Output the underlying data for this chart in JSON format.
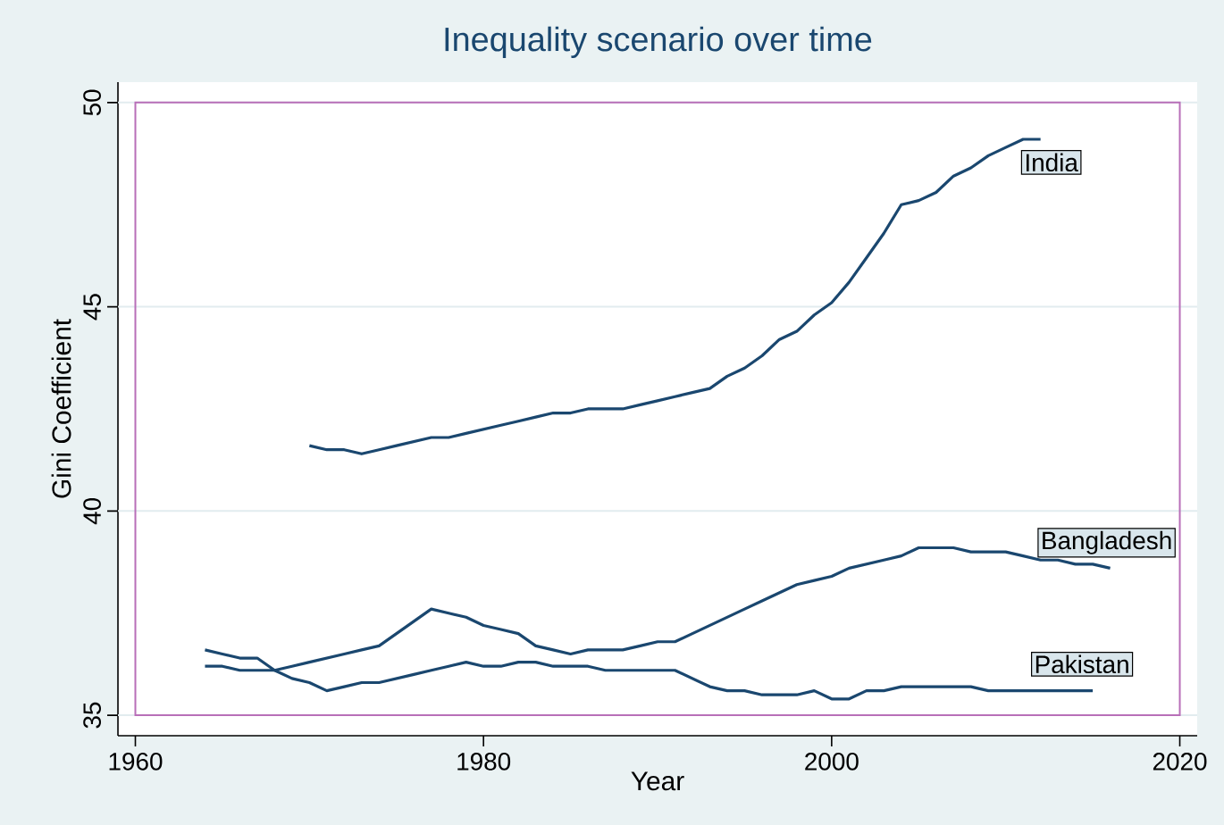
{
  "chart_data": {
    "type": "line",
    "title": "Inequality scenario over time",
    "xlabel": "Year",
    "ylabel": "Gini Coefficient",
    "xlim": [
      1959,
      2021
    ],
    "ylim": [
      34.5,
      50.5
    ],
    "xticks": [
      1960,
      1980,
      2000,
      2020
    ],
    "yticks": [
      35,
      40,
      45,
      50
    ],
    "grid": "y",
    "legend": false,
    "line_style": "solid",
    "marker": "none",
    "series": [
      {
        "name": "India",
        "color": "#1a476f",
        "x": [
          1970,
          1971,
          1972,
          1973,
          1974,
          1975,
          1976,
          1977,
          1978,
          1979,
          1980,
          1981,
          1982,
          1983,
          1984,
          1985,
          1986,
          1987,
          1988,
          1989,
          1990,
          1991,
          1992,
          1993,
          1994,
          1995,
          1996,
          1997,
          1998,
          1999,
          2000,
          2001,
          2002,
          2003,
          2004,
          2005,
          2006,
          2007,
          2008,
          2009,
          2010,
          2011,
          2012
        ],
        "values": [
          41.6,
          41.5,
          41.5,
          41.4,
          41.5,
          41.6,
          41.7,
          41.8,
          41.8,
          41.9,
          42.0,
          42.1,
          42.2,
          42.3,
          42.4,
          42.4,
          42.5,
          42.5,
          42.5,
          42.6,
          42.7,
          42.8,
          42.9,
          43.0,
          43.3,
          43.5,
          43.8,
          44.2,
          44.4,
          44.8,
          45.1,
          45.6,
          46.2,
          46.8,
          47.5,
          47.6,
          47.8,
          48.2,
          48.4,
          48.7,
          48.9,
          49.1,
          49.1
        ]
      },
      {
        "name": "Bangladesh",
        "color": "#1a476f",
        "x": [
          1964,
          1965,
          1966,
          1967,
          1968,
          1969,
          1970,
          1971,
          1972,
          1973,
          1974,
          1975,
          1976,
          1977,
          1978,
          1979,
          1980,
          1981,
          1982,
          1983,
          1984,
          1985,
          1986,
          1987,
          1988,
          1989,
          1990,
          1991,
          1992,
          1993,
          1994,
          1995,
          1996,
          1997,
          1998,
          1999,
          2000,
          2001,
          2002,
          2003,
          2004,
          2005,
          2006,
          2007,
          2008,
          2009,
          2010,
          2011,
          2012,
          2013,
          2014,
          2015,
          2016
        ],
        "values": [
          36.2,
          36.2,
          36.1,
          36.1,
          36.1,
          36.2,
          36.3,
          36.4,
          36.5,
          36.6,
          36.7,
          37.0,
          37.3,
          37.6,
          37.5,
          37.4,
          37.2,
          37.1,
          37.0,
          36.7,
          36.6,
          36.5,
          36.6,
          36.6,
          36.6,
          36.7,
          36.8,
          36.8,
          37.0,
          37.2,
          37.4,
          37.6,
          37.8,
          38.0,
          38.2,
          38.3,
          38.4,
          38.6,
          38.7,
          38.8,
          38.9,
          39.1,
          39.1,
          39.1,
          39.0,
          39.0,
          39.0,
          38.9,
          38.8,
          38.8,
          38.7,
          38.7,
          38.6
        ]
      },
      {
        "name": "Pakistan",
        "color": "#1a476f",
        "x": [
          1964,
          1965,
          1966,
          1967,
          1968,
          1969,
          1970,
          1971,
          1972,
          1973,
          1974,
          1975,
          1976,
          1977,
          1978,
          1979,
          1980,
          1981,
          1982,
          1983,
          1984,
          1985,
          1986,
          1987,
          1988,
          1989,
          1990,
          1991,
          1992,
          1993,
          1994,
          1995,
          1996,
          1997,
          1998,
          1999,
          2000,
          2001,
          2002,
          2003,
          2004,
          2005,
          2006,
          2007,
          2008,
          2009,
          2010,
          2011,
          2012,
          2013,
          2014,
          2015
        ],
        "values": [
          36.6,
          36.5,
          36.4,
          36.4,
          36.1,
          35.9,
          35.8,
          35.6,
          35.7,
          35.8,
          35.8,
          35.9,
          36.0,
          36.1,
          36.2,
          36.3,
          36.2,
          36.2,
          36.3,
          36.3,
          36.2,
          36.2,
          36.2,
          36.1,
          36.1,
          36.1,
          36.1,
          36.1,
          35.9,
          35.7,
          35.6,
          35.6,
          35.5,
          35.5,
          35.5,
          35.6,
          35.4,
          35.4,
          35.6,
          35.6,
          35.7,
          35.7,
          35.7,
          35.7,
          35.7,
          35.6,
          35.6,
          35.6,
          35.6,
          35.6,
          35.6,
          35.6
        ]
      }
    ]
  }
}
